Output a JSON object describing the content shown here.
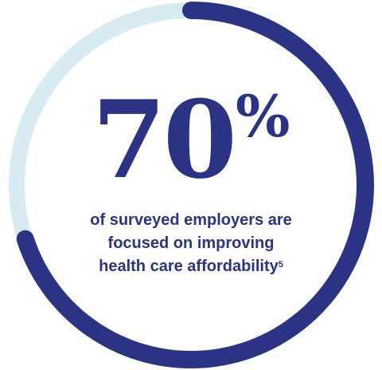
{
  "chart_data": {
    "type": "pie",
    "value": 70,
    "unit": "%",
    "max": 100,
    "colors": {
      "filled": "#2b3484",
      "remaining": "#d6ebf2",
      "text": "#2b3484"
    },
    "caption_lines": [
      "of surveyed employers are",
      "focused on improving",
      "health care affordability"
    ],
    "footnote_marker": "5"
  }
}
